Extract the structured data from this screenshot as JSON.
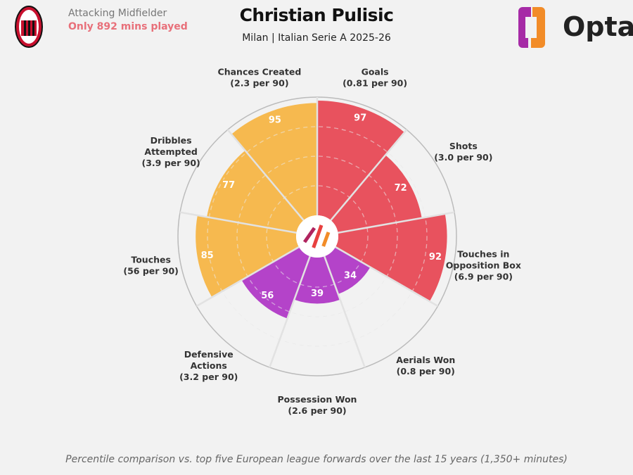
{
  "header": {
    "role": "Attacking Midfielder",
    "minutes_note": "Only 892 mins played",
    "title": "Christian Pulisic",
    "subtitle": "Milan | Italian Serie A 2025-26",
    "brand": "Opta",
    "club_crest": "AC Milan 1899"
  },
  "footer": "Percentile comparison vs. top five European league forwards over the last 15 years (1,350+ minutes)",
  "chart_data": {
    "type": "pizza",
    "range": [
      0,
      100
    ],
    "rings": [
      25,
      50,
      75
    ],
    "colors": {
      "attacking": "#e8525e",
      "possession": "#f6b94f",
      "defending": "#b443c9"
    },
    "slices": [
      {
        "label": "Goals",
        "sub": "(0.81 per 90)",
        "value": 97,
        "group": "attacking"
      },
      {
        "label": "Shots",
        "sub": "(3.0 per 90)",
        "value": 72,
        "group": "attacking"
      },
      {
        "label": "Touches in Opposition Box",
        "sub": "(6.9 per 90)",
        "value": 92,
        "group": "attacking"
      },
      {
        "label": "Aerials Won",
        "sub": "(0.8 per 90)",
        "value": 34,
        "group": "defending"
      },
      {
        "label": "Possession Won",
        "sub": "(2.6 per 90)",
        "value": 39,
        "group": "defending"
      },
      {
        "label": "Defensive Actions",
        "sub": "(3.2 per 90)",
        "value": 56,
        "group": "defending"
      },
      {
        "label": "Touches",
        "sub": "(56 per 90)",
        "value": 85,
        "group": "possession"
      },
      {
        "label": "Dribbles Attempted",
        "sub": "(3.9 per 90)",
        "value": 77,
        "group": "possession"
      },
      {
        "label": "Chances Created",
        "sub": "(2.3 per 90)",
        "value": 95,
        "group": "possession"
      }
    ]
  }
}
